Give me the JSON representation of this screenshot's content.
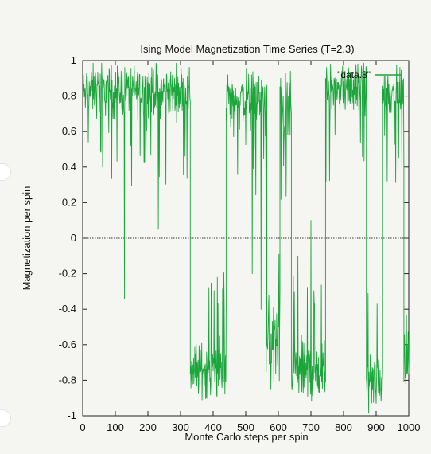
{
  "chart_data": {
    "type": "line",
    "title": "Ising Model Magnetization Time Series (T=2.3)",
    "xlabel": "Monte Carlo steps per spin",
    "ylabel": "Magnetization per spin",
    "xlim": [
      0,
      1000
    ],
    "ylim": [
      -1,
      1
    ],
    "xticks": [
      0,
      100,
      200,
      300,
      400,
      500,
      600,
      700,
      800,
      900,
      1000
    ],
    "yticks": [
      -1,
      -0.8,
      -0.6,
      -0.4,
      -0.2,
      0,
      0.2,
      0.4,
      0.6,
      0.8,
      1
    ],
    "grid": false,
    "legend": "top-right",
    "zero_line": true,
    "series": [
      {
        "name": "\"data.3\"",
        "color": "#1aa63a",
        "segments": [
          {
            "x0": 0,
            "x1": 8,
            "mean": 0.82,
            "spread": 0.12
          },
          {
            "x0": 12,
            "x1": 330,
            "mean": 0.83,
            "spread": 0.13
          },
          {
            "x0": 330,
            "x1": 440,
            "mean": -0.74,
            "spread": 0.14
          },
          {
            "x0": 440,
            "x1": 565,
            "mean": 0.78,
            "spread": 0.15
          },
          {
            "x0": 565,
            "x1": 605,
            "mean": -0.6,
            "spread": 0.25
          },
          {
            "x0": 605,
            "x1": 640,
            "mean": 0.72,
            "spread": 0.18
          },
          {
            "x0": 640,
            "x1": 745,
            "mean": -0.75,
            "spread": 0.16
          },
          {
            "x0": 745,
            "x1": 870,
            "mean": 0.84,
            "spread": 0.12
          },
          {
            "x0": 870,
            "x1": 920,
            "mean": -0.8,
            "spread": 0.13
          },
          {
            "x0": 920,
            "x1": 985,
            "mean": 0.82,
            "spread": 0.12
          },
          {
            "x0": 985,
            "x1": 1000,
            "mean": -0.7,
            "spread": 0.15
          }
        ],
        "spikes": [
          {
            "x": 10,
            "y": -0.46
          },
          {
            "x": 128,
            "y": -0.34
          },
          {
            "x": 232,
            "y": 0.05
          },
          {
            "x": 520,
            "y": -0.2
          },
          {
            "x": 547,
            "y": -0.4
          },
          {
            "x": 563,
            "y": -0.75
          },
          {
            "x": 607,
            "y": 0.9
          },
          {
            "x": 660,
            "y": -0.1
          },
          {
            "x": 700,
            "y": 0.1
          },
          {
            "x": 760,
            "y": 0.98
          },
          {
            "x": 900,
            "y": -0.93
          }
        ]
      }
    ]
  }
}
